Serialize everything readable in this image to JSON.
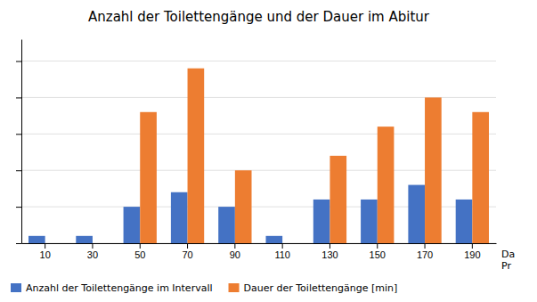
{
  "chart_data": {
    "type": "bar",
    "title": "Anzahl der Toilettengänge und der Dauer im Abitur",
    "xlabel": "Da\nPr",
    "categories": [
      10,
      30,
      50,
      70,
      90,
      110,
      130,
      150,
      170,
      190
    ],
    "series": [
      {
        "name": "Anzahl der Toilettengänge im Intervall",
        "color": "#4472C4",
        "values": [
          1,
          1,
          5,
          7,
          5,
          1,
          6,
          6,
          8,
          6
        ]
      },
      {
        "name": "Dauer der Toilettengänge [min]",
        "color": "#ED7D31",
        "values": [
          0,
          0,
          18,
          24,
          10,
          0,
          12,
          16,
          20,
          18
        ]
      }
    ],
    "ylim": [
      0,
      28
    ],
    "yticks": [
      0,
      5,
      10,
      15,
      20,
      25
    ],
    "grid": true,
    "legend": "lower left",
    "tick_labels": "x"
  }
}
